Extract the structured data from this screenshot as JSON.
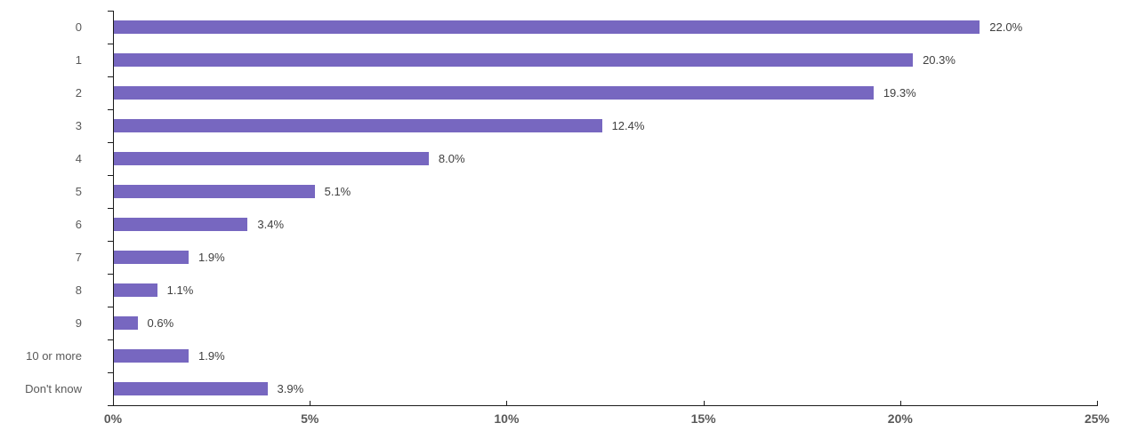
{
  "chart_data": {
    "type": "bar",
    "orientation": "horizontal",
    "title": "",
    "xlabel": "",
    "ylabel": "",
    "categories": [
      "0",
      "1",
      "2",
      "3",
      "4",
      "5",
      "6",
      "7",
      "8",
      "9",
      "10 or more",
      "Don't know"
    ],
    "values": [
      22.0,
      20.3,
      19.3,
      12.4,
      8.0,
      5.1,
      3.4,
      1.9,
      1.1,
      0.6,
      1.9,
      3.9
    ],
    "value_labels": [
      "22.0%",
      "20.3%",
      "19.3%",
      "12.4%",
      "8.0%",
      "5.1%",
      "3.4%",
      "1.9%",
      "1.1%",
      "0.6%",
      "1.9%",
      "3.9%"
    ],
    "x_tick_labels": [
      "0%",
      "5%",
      "10%",
      "15%",
      "20%",
      "25%"
    ],
    "x_tick_values": [
      0,
      5,
      10,
      15,
      20,
      25
    ],
    "xlim": [
      0,
      25
    ],
    "grid": false,
    "legend": false,
    "data_labels": true,
    "colors": {
      "bar": "#7767c0",
      "category_label": "#595959",
      "value_label": "#3f3f3f",
      "x_tick_label": "#595959",
      "axis": "#1a1a1a",
      "background": "#ffffff"
    }
  }
}
